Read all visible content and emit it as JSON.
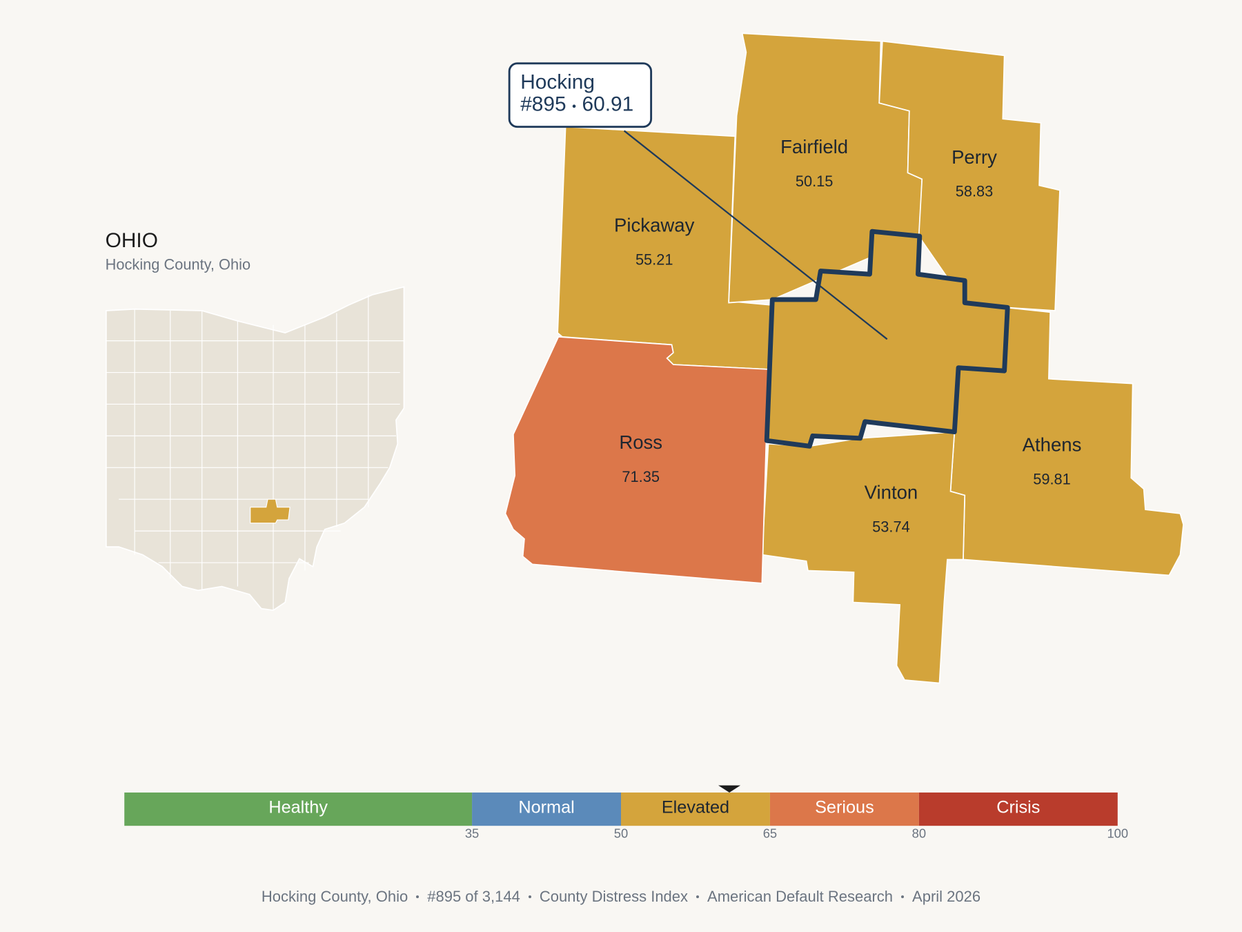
{
  "inset": {
    "title": "OHIO",
    "subtitle": "Hocking County, Ohio"
  },
  "focus": {
    "name": "Hocking",
    "rank": "#895",
    "score": 60.91
  },
  "counties": [
    {
      "name": "Pickaway",
      "value": 55.21
    },
    {
      "name": "Fairfield",
      "value": 50.15
    },
    {
      "name": "Perry",
      "value": 58.83
    },
    {
      "name": "Athens",
      "value": 59.81
    },
    {
      "name": "Vinton",
      "value": 53.74
    },
    {
      "name": "Ross",
      "value": 71.35
    }
  ],
  "scale": {
    "range": [
      0,
      100
    ],
    "ticks": [
      35,
      50,
      65,
      80,
      100
    ],
    "bands": [
      {
        "name": "Healthy",
        "color": "#67a65a"
      },
      {
        "name": "Normal",
        "color": "#5b8aba"
      },
      {
        "name": "Elevated",
        "color": "#d4a43c"
      },
      {
        "name": "Serious",
        "color": "#dc774a"
      },
      {
        "name": "Crisis",
        "color": "#b93c2c"
      }
    ]
  },
  "footer": {
    "items": [
      "Hocking County, Ohio",
      "#895 of 3,144",
      "County Distress Index",
      "American Default Research",
      "April 2026"
    ]
  }
}
